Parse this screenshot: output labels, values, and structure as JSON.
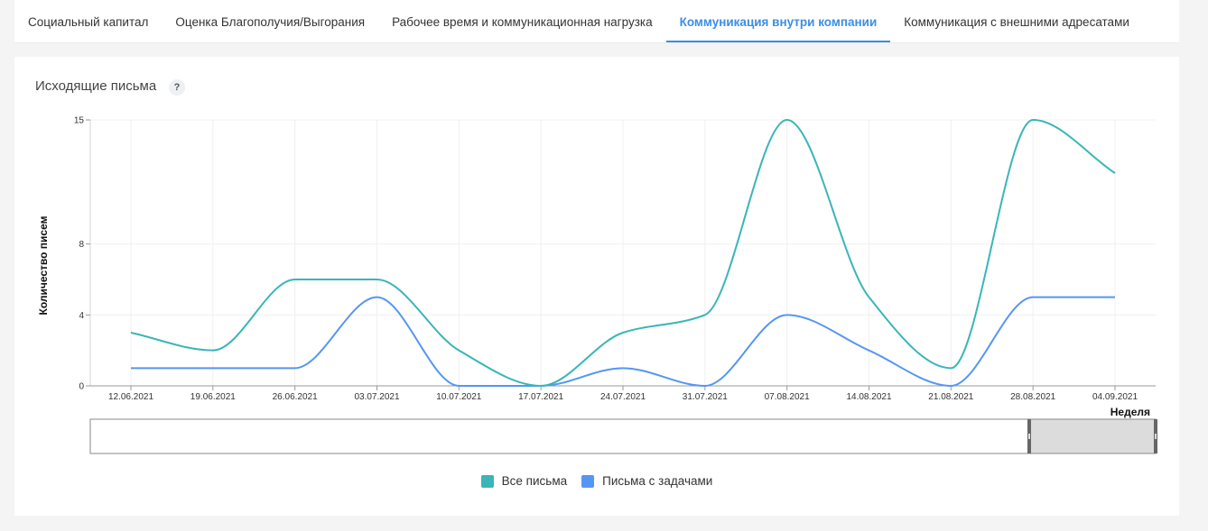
{
  "tabs": [
    {
      "label": "Социальный капитал",
      "active": false
    },
    {
      "label": "Оценка Благополучия/Выгорания",
      "active": false
    },
    {
      "label": "Рабочее время и коммуникационная нагрузка",
      "active": false
    },
    {
      "label": "Коммуникация внутри компании",
      "active": true
    },
    {
      "label": "Коммуникация с внешними адресатами",
      "active": false
    }
  ],
  "card": {
    "title": "Исходящие письма",
    "help_label": "?"
  },
  "chart_data": {
    "type": "line",
    "smooth": true,
    "xlabel": "Неделя",
    "ylabel": "Количество писем",
    "categories": [
      "12.06.2021",
      "19.06.2021",
      "26.06.2021",
      "03.07.2021",
      "10.07.2021",
      "17.07.2021",
      "24.07.2021",
      "31.07.2021",
      "07.08.2021",
      "14.08.2021",
      "21.08.2021",
      "28.08.2021",
      "04.09.2021"
    ],
    "yticks": [
      0,
      4,
      8,
      15
    ],
    "ylim": [
      0,
      15
    ],
    "grid": true,
    "legend_position": "bottom-center",
    "series": [
      {
        "name": "Все письма",
        "color": "#3ab5b8",
        "values": [
          3,
          2,
          6,
          6,
          2,
          0,
          3,
          4,
          15,
          5,
          1,
          15,
          12
        ]
      },
      {
        "name": "Письма с задачами",
        "color": "#5596f4",
        "values": [
          1,
          1,
          1,
          5,
          0,
          0,
          1,
          0,
          4,
          2,
          0,
          5,
          5
        ]
      }
    ]
  }
}
